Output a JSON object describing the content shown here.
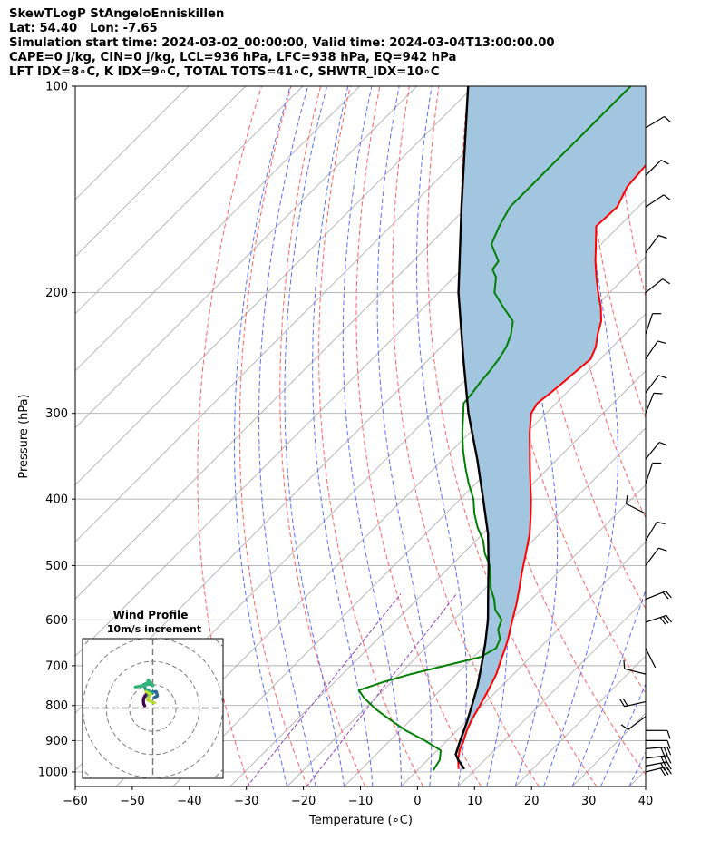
{
  "header": {
    "lines": [
      "SkewTLogP StAngeloEnniskillen",
      "Lat: 54.40   Lon: -7.65",
      "Simulation start time: 2024-03-02_00:00:00, Valid time: 2024-03-04T13:00:00.00",
      "CAPE=0 j/kg, CIN=0 j/kg, LCL=936 hPa, LFC=938 hPa, EQ=942 hPa",
      "LFT IDX=8∘C, K IDX=9∘C, TOTAL TOTS=41∘C, SHWTR_IDX=10∘C"
    ]
  },
  "chart_data": {
    "type": "line",
    "skew_t": true,
    "xlabel": "Temperature (∘C)",
    "ylabel": "Pressure (hPa)",
    "xlim": [
      -60,
      40
    ],
    "ylim": [
      1050,
      100
    ],
    "y_scale": "log",
    "grid": true,
    "x_ticks": [
      -60,
      -50,
      -40,
      -30,
      -20,
      -10,
      0,
      10,
      20,
      30,
      40
    ],
    "x_tick_labels": [
      "−60",
      "−50",
      "−40",
      "−30",
      "−20",
      "−10",
      "0",
      "10",
      "20",
      "30",
      "40"
    ],
    "y_ticks": [
      1000,
      900,
      800,
      700,
      600,
      500,
      400,
      300,
      200,
      100
    ],
    "y_tick_labels": [
      "1000",
      "900",
      "800",
      "700",
      "600",
      "500",
      "400",
      "300",
      "200",
      "100"
    ],
    "colors": {
      "temperature": "#ff0000",
      "dewpoint": "#008000",
      "parcel": "#000000",
      "cape_fill": "#a3c6e0",
      "dry_adiabat": "#ff6060",
      "moist_adiabat": "#5a6cff",
      "mixing_ratio": "#9040c0",
      "isotherm": "#b0b0b0"
    },
    "series": [
      {
        "key": "temperature",
        "pressure": [
          990,
          960,
          930,
          900,
          870,
          840,
          800,
          760,
          720,
          690,
          660,
          640,
          620,
          600,
          570,
          540,
          510,
          480,
          450,
          420,
          400,
          380,
          360,
          340,
          320,
          300,
          290,
          280,
          270,
          260,
          250,
          240,
          230,
          220,
          210,
          200,
          190,
          180,
          170,
          160,
          150,
          140,
          130,
          120,
          115,
          110,
          105,
          100
        ],
        "temp": [
          7.0,
          5.3,
          3.9,
          2.9,
          1.7,
          0.7,
          -0.4,
          -1.6,
          -3.0,
          -4.5,
          -6.0,
          -7.1,
          -8.4,
          -9.7,
          -11.7,
          -14.0,
          -16.5,
          -19.0,
          -21.7,
          -25.1,
          -27.6,
          -30.4,
          -33.3,
          -36.3,
          -39.5,
          -42.6,
          -43.3,
          -42.8,
          -42.4,
          -42.1,
          -41.7,
          -42.9,
          -44.8,
          -46.5,
          -49.0,
          -52.0,
          -55.0,
          -58.0,
          -60.9,
          -64.0,
          -63.7,
          -65.5,
          -66.0,
          -68.0,
          -68.8,
          -69.8,
          -70.0,
          -70.5
        ]
      },
      {
        "key": "dewpoint",
        "pressure": [
          995,
          960,
          930,
          900,
          870,
          840,
          810,
          780,
          760,
          740,
          720,
          700,
          680,
          660,
          640,
          620,
          600,
          580,
          560,
          540,
          520,
          500,
          480,
          460,
          440,
          420,
          400,
          380,
          360,
          340,
          320,
          300,
          290,
          280,
          270,
          260,
          250,
          240,
          230,
          220,
          210,
          200,
          190,
          185,
          180,
          170,
          160,
          150,
          140,
          130,
          120,
          110,
          100
        ],
        "temp": [
          2.8,
          2.1,
          0.6,
          -3.9,
          -9.0,
          -13.5,
          -18.0,
          -22.0,
          -24.3,
          -21.5,
          -18.0,
          -13.5,
          -8.8,
          -7.6,
          -8.5,
          -10.5,
          -11.6,
          -14.5,
          -16.5,
          -19.0,
          -21.0,
          -23.2,
          -26.2,
          -28.7,
          -32.0,
          -35.0,
          -37.7,
          -41.2,
          -44.6,
          -48.0,
          -51.3,
          -54.5,
          -56.2,
          -56.5,
          -57.0,
          -57.3,
          -57.8,
          -58.6,
          -60.0,
          -62.0,
          -66.1,
          -70.2,
          -72.6,
          -74.6,
          -75.0,
          -79.2,
          -81.0,
          -82.5,
          -82.5,
          -82.5,
          -82.5,
          -82.5,
          -82.5
        ]
      },
      {
        "key": "parcel",
        "pressure": [
          990,
          960,
          942,
          900,
          850,
          800,
          750,
          700,
          650,
          600,
          550,
          500,
          450,
          400,
          350,
          300,
          250,
          200,
          150,
          100
        ],
        "temp": [
          8.0,
          5.3,
          3.9,
          2.3,
          0.4,
          -1.8,
          -4.2,
          -7.1,
          -10.3,
          -14.0,
          -18.5,
          -23.4,
          -29.0,
          -36.0,
          -44.0,
          -53.6,
          -64.0,
          -76.5,
          -91.0,
          -111.0
        ]
      }
    ],
    "wind_barbs": [
      {
        "pressure": 1000,
        "u": -24,
        "v": -6
      },
      {
        "pressure": 980,
        "u": -21,
        "v": -4
      },
      {
        "pressure": 955,
        "u": -16,
        "v": -2
      },
      {
        "pressure": 925,
        "u": -13,
        "v": -1
      },
      {
        "pressure": 900,
        "u": -7,
        "v": 0
      },
      {
        "pressure": 870,
        "u": -4,
        "v": 0
      },
      {
        "pressure": 830,
        "u": 4,
        "v": 3
      },
      {
        "pressure": 790,
        "u": 9,
        "v": 2
      },
      {
        "pressure": 720,
        "u": 4,
        "v": -1
      },
      {
        "pressure": 660,
        "u": -1,
        "v": 2
      },
      {
        "pressure": 605,
        "u": -12,
        "v": -4
      },
      {
        "pressure": 560,
        "u": -10,
        "v": -4
      },
      {
        "pressure": 500,
        "u": -3,
        "v": -4
      },
      {
        "pressure": 460,
        "u": -3,
        "v": -5
      },
      {
        "pressure": 420,
        "u": 4,
        "v": -2
      },
      {
        "pressure": 380,
        "u": -1,
        "v": -3
      },
      {
        "pressure": 350,
        "u": -4,
        "v": -5
      },
      {
        "pressure": 300,
        "u": -2,
        "v": -5
      },
      {
        "pressure": 280,
        "u": -3,
        "v": -4
      },
      {
        "pressure": 250,
        "u": -2,
        "v": -3
      },
      {
        "pressure": 230,
        "u": -1,
        "v": -3
      },
      {
        "pressure": 200,
        "u": -5,
        "v": -4
      },
      {
        "pressure": 175,
        "u": -3,
        "v": -4
      },
      {
        "pressure": 150,
        "u": -3,
        "v": -2
      },
      {
        "pressure": 135,
        "u": -2,
        "v": -2
      },
      {
        "pressure": 115,
        "u": -5,
        "v": -3
      }
    ],
    "hodograph": {
      "title": "Wind Profile",
      "subtitle": "10m/s increment",
      "ring_speeds": [
        10,
        20,
        30,
        40
      ],
      "range": 30,
      "segments": [
        {
          "color": "#440154",
          "u": [
            -3.5,
            -3.8,
            -4.0,
            -4.0,
            -3.5,
            -2.8,
            -2.2
          ],
          "v": [
            1.0,
            1.5,
            2.5,
            3.8,
            5.0,
            5.8,
            5.0
          ]
        },
        {
          "color": "#31688e",
          "u": [
            -2.2,
            -1.8,
            0,
            1.5,
            2.0,
            0.6
          ],
          "v": [
            5.0,
            6.6,
            6.9,
            7.1,
            5.2,
            4.5
          ]
        },
        {
          "color": "#1f9e89",
          "u": [
            -0.1,
            -3.0,
            -4.0,
            -2.0,
            0
          ],
          "v": [
            6.6,
            8.0,
            10.0,
            10.8,
            9.6
          ]
        },
        {
          "color": "#35b779",
          "u": [
            0.1,
            -2.0,
            -2.5,
            -7.5
          ],
          "v": [
            9.8,
            12.0,
            10.0,
            9.0
          ]
        },
        {
          "color": "#b5de2b",
          "u": [
            -3.0,
            -1.0,
            -2.3,
            0.7
          ],
          "v": [
            7.1,
            6.0,
            3.5,
            2.2
          ]
        }
      ]
    }
  }
}
